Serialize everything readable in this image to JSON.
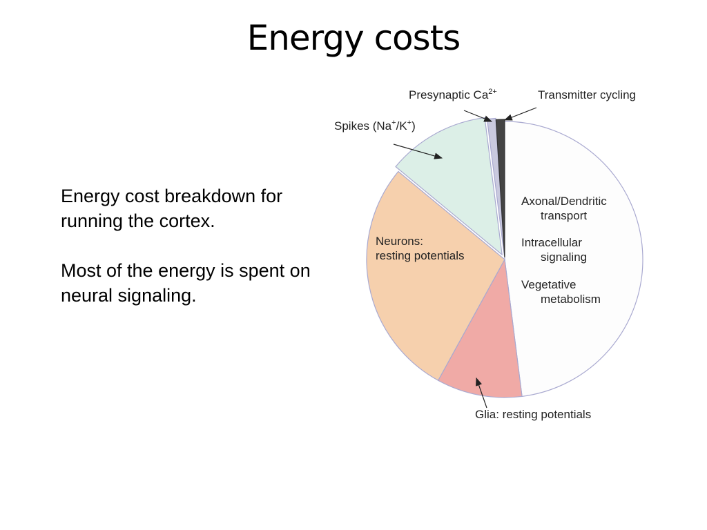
{
  "title": "Energy costs",
  "text": {
    "paragraphs": [
      "Energy cost breakdown for running the cortex.",
      "Most of the energy is spent on neural signaling."
    ]
  },
  "chart_data": {
    "type": "pie",
    "labels": [
      [
        "Axonal/Dendritic",
        "transport",
        "Intracellular",
        "signaling",
        "Vegetative",
        "metabolism"
      ],
      [
        "Glia: resting potentials"
      ],
      [
        "Neurons:",
        "resting potentials"
      ],
      [
        [
          {
            "text": "Spikes (Na"
          },
          {
            "sup": "+"
          },
          {
            "text": "/K"
          },
          {
            "sup": "+"
          },
          {
            "text": ")"
          }
        ]
      ],
      [
        [
          {
            "text": "Presynaptic Ca"
          },
          {
            "sup": "2+"
          }
        ]
      ],
      [
        "Transmitter cycling"
      ]
    ],
    "values": [
      48,
      10,
      28,
      12,
      1,
      1
    ],
    "colors": [
      "#fdfdfd",
      "#f0aaa6",
      "#f6d0ad",
      "#dcefe7",
      "#c9c9de",
      "#444444"
    ]
  }
}
